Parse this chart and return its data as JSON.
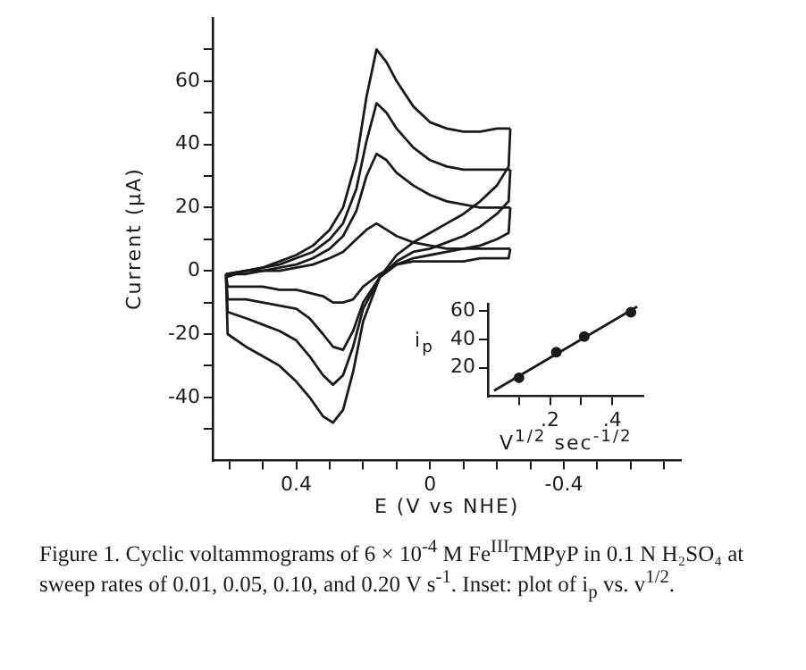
{
  "chart_data": [
    {
      "type": "line",
      "xlabel": "E (V vs NHE)",
      "ylabel": "Current (μA)",
      "xlim": [
        0.65,
        -0.75
      ],
      "ylim": [
        -60,
        80
      ],
      "xticks": [
        {
          "value": 0.6,
          "label": null
        },
        {
          "value": 0.5,
          "label": null
        },
        0.4,
        {
          "value": 0.3,
          "label": null
        },
        {
          "value": 0.2,
          "label": null
        },
        {
          "value": 0.1,
          "label": null
        },
        0,
        {
          "value": -0.1,
          "label": null
        },
        {
          "value": -0.2,
          "label": null
        },
        {
          "value": -0.3,
          "label": null
        },
        -0.4,
        {
          "value": -0.5,
          "label": null
        },
        {
          "value": -0.6,
          "label": null
        },
        {
          "value": -0.7,
          "label": null
        }
      ],
      "yticks": [
        {
          "value": -50,
          "label": null
        },
        -40,
        {
          "value": -30,
          "label": null
        },
        -20,
        {
          "value": -10,
          "label": null
        },
        0,
        {
          "value": 10,
          "label": null
        },
        20,
        {
          "value": 30,
          "label": null
        },
        40,
        {
          "value": 50,
          "label": null
        },
        60,
        {
          "value": 70,
          "label": null
        }
      ],
      "series": [
        {
          "color": "#1a1a1a",
          "x": [
            0.61,
            0.55,
            0.5,
            0.45,
            0.4,
            0.35,
            0.3,
            0.26,
            0.22,
            0.19,
            0.16,
            0.13,
            0.1,
            0.05,
            0,
            -0.05,
            -0.1,
            -0.15,
            -0.2,
            -0.24
          ],
          "values": [
            -2,
            0,
            1,
            3,
            5,
            8,
            13,
            20,
            35,
            55,
            70,
            66,
            60,
            52,
            47,
            45,
            44,
            44,
            45,
            45
          ]
        },
        {
          "color": "#1a1a1a",
          "x": [
            -0.24,
            -0.235,
            -0.2,
            -0.15,
            -0.1,
            -0.05,
            0,
            0.05,
            0.1,
            0.15,
            0.2,
            0.23,
            0.26,
            0.29,
            0.32,
            0.36,
            0.4,
            0.45,
            0.5,
            0.55,
            0.605,
            0.61
          ],
          "values": [
            45,
            33,
            27,
            22,
            18,
            15,
            12,
            9,
            5,
            -2,
            -16,
            -32,
            -44,
            -48,
            -46,
            -40,
            -35,
            -30,
            -27,
            -24,
            -20,
            -2
          ]
        },
        {
          "color": "#1a1a1a",
          "x": [
            0.61,
            0.55,
            0.5,
            0.45,
            0.4,
            0.35,
            0.3,
            0.26,
            0.22,
            0.19,
            0.16,
            0.13,
            0.1,
            0.05,
            0,
            -0.05,
            -0.1,
            -0.15,
            -0.2,
            -0.24
          ],
          "values": [
            -1,
            0,
            1,
            2,
            4,
            6,
            10,
            15,
            26,
            41,
            53,
            50,
            45,
            39,
            35,
            33,
            32,
            32,
            32,
            32
          ]
        },
        {
          "color": "#1a1a1a",
          "x": [
            -0.24,
            -0.235,
            -0.2,
            -0.15,
            -0.1,
            -0.05,
            0,
            0.05,
            0.1,
            0.15,
            0.2,
            0.23,
            0.26,
            0.29,
            0.32,
            0.36,
            0.4,
            0.45,
            0.5,
            0.55,
            0.605,
            0.61
          ],
          "values": [
            32,
            22,
            18,
            14,
            11,
            9,
            7,
            6,
            3,
            -2,
            -12,
            -24,
            -33,
            -36,
            -33,
            -27,
            -22,
            -19,
            -17,
            -15,
            -13,
            -1
          ]
        },
        {
          "color": "#1a1a1a",
          "x": [
            0.61,
            0.55,
            0.5,
            0.45,
            0.4,
            0.35,
            0.3,
            0.26,
            0.22,
            0.19,
            0.16,
            0.13,
            0.1,
            0.05,
            0,
            -0.05,
            -0.1,
            -0.15,
            -0.2,
            -0.24
          ],
          "values": [
            -1,
            0,
            0,
            1,
            2,
            4,
            7,
            11,
            19,
            30,
            37,
            35,
            31,
            27,
            24,
            22,
            21,
            20,
            20,
            20
          ]
        },
        {
          "color": "#1a1a1a",
          "x": [
            -0.24,
            -0.235,
            -0.2,
            -0.15,
            -0.1,
            -0.05,
            0,
            0.05,
            0.1,
            0.15,
            0.2,
            0.23,
            0.26,
            0.29,
            0.32,
            0.36,
            0.4,
            0.45,
            0.5,
            0.55,
            0.605,
            0.61
          ],
          "values": [
            20,
            12,
            10,
            8,
            7,
            6,
            5,
            4,
            2,
            -2,
            -10,
            -19,
            -25,
            -24,
            -20,
            -15,
            -12,
            -11,
            -10,
            -9,
            -9,
            -1
          ]
        },
        {
          "color": "#1a1a1a",
          "x": [
            0.61,
            0.55,
            0.5,
            0.45,
            0.4,
            0.35,
            0.3,
            0.26,
            0.22,
            0.19,
            0.16,
            0.13,
            0.1,
            0.05,
            0,
            -0.05,
            -0.1,
            -0.15,
            -0.2,
            -0.24
          ],
          "values": [
            -1,
            -1,
            0,
            0,
            1,
            2,
            4,
            6,
            10,
            13,
            15,
            13,
            11,
            9,
            8,
            7,
            7,
            7,
            7,
            7
          ]
        },
        {
          "color": "#1a1a1a",
          "x": [
            -0.24,
            -0.235,
            -0.2,
            -0.15,
            -0.1,
            -0.05,
            0,
            0.05,
            0.1,
            0.15,
            0.2,
            0.23,
            0.26,
            0.29,
            0.32,
            0.36,
            0.4,
            0.45,
            0.5,
            0.55,
            0.605,
            0.61
          ],
          "values": [
            7,
            4,
            4,
            4,
            3,
            3,
            3,
            3,
            2,
            -1,
            -5,
            -9,
            -10,
            -10,
            -8,
            -7,
            -6,
            -6,
            -5,
            -5,
            -5,
            -1
          ]
        }
      ],
      "annotations": [
        "Figure 1. Cyclic voltammograms of 6 × 10$^{-4}$ M Fe$^{III}$TMPyP in 0.1 N H₂SO₄ at sweep rates of 0.01, 0.05, 0.10, and 0.20 V s$^{-1}$. Inset: plot of i$_{p}$ vs. v$^{1/2}$."
      ]
    },
    {
      "type": "scatter",
      "xlabel": "V$^{1/2}$ sec$^{-1/2}$",
      "ylabel": "i$_{p}$",
      "xlim": [
        0,
        0.5
      ],
      "ylim": [
        0,
        65
      ],
      "xticks": [
        {
          "value": 0.1,
          "label": null
        },
        {
          "value": 0.2,
          "label": ".2"
        },
        {
          "value": 0.3,
          "label": null
        },
        {
          "value": 0.4,
          "label": ".4"
        }
      ],
      "yticks": [
        20,
        40,
        60
      ],
      "series": [
        {
          "color": "#1a1a1a",
          "marker": "circle",
          "x": [
            0.1,
            0.22,
            0.31,
            0.46
          ],
          "values": [
            13,
            31,
            42,
            59
          ]
        },
        {
          "type": "line",
          "color": "#1a1a1a",
          "x": [
            0.02,
            0.48
          ],
          "values": [
            4,
            63
          ]
        }
      ]
    }
  ]
}
